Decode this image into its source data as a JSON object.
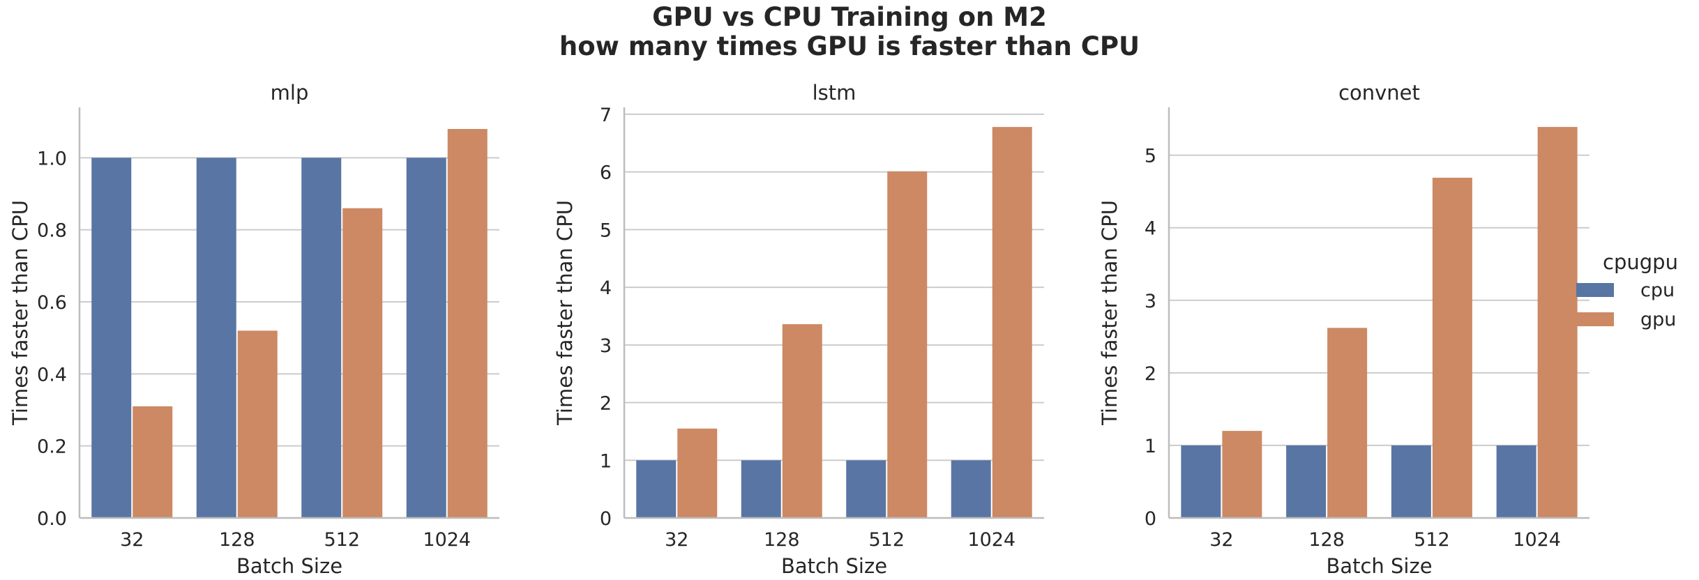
{
  "title_line1": "GPU vs CPU Training on M2",
  "title_line2": "how many times GPU is faster than CPU",
  "colors": {
    "cpu": "#5875a4",
    "gpu": "#cc8963",
    "grid": "#cccccc",
    "axis": "#bdbdbd"
  },
  "legend": {
    "title": "cpugpu",
    "items": [
      "cpu",
      "gpu"
    ]
  },
  "chart_data": [
    {
      "type": "bar",
      "title": "mlp",
      "xlabel": "Batch Size",
      "ylabel": "Times faster than CPU",
      "categories": [
        "32",
        "128",
        "512",
        "1024"
      ],
      "series": [
        {
          "name": "cpu",
          "values": [
            1.0,
            1.0,
            1.0,
            1.0
          ]
        },
        {
          "name": "gpu",
          "values": [
            0.31,
            0.52,
            0.86,
            1.08
          ]
        }
      ],
      "ylim": [
        0,
        1.14
      ],
      "yticks": [
        0.0,
        0.2,
        0.4,
        0.6,
        0.8,
        1.0
      ],
      "ytick_labels": [
        "0.0",
        "0.2",
        "0.4",
        "0.6",
        "0.8",
        "1.0"
      ]
    },
    {
      "type": "bar",
      "title": "lstm",
      "xlabel": "Batch Size",
      "ylabel": "Times faster than CPU",
      "categories": [
        "32",
        "128",
        "512",
        "1024"
      ],
      "series": [
        {
          "name": "cpu",
          "values": [
            1.0,
            1.0,
            1.0,
            1.0
          ]
        },
        {
          "name": "gpu",
          "values": [
            1.55,
            3.36,
            6.01,
            6.78
          ]
        }
      ],
      "ylim": [
        0,
        7.12
      ],
      "yticks": [
        0,
        1,
        2,
        3,
        4,
        5,
        6,
        7
      ],
      "ytick_labels": [
        "0",
        "1",
        "2",
        "3",
        "4",
        "5",
        "6",
        "7"
      ]
    },
    {
      "type": "bar",
      "title": "convnet",
      "xlabel": "Batch Size",
      "ylabel": "Times faster than CPU",
      "categories": [
        "32",
        "128",
        "512",
        "1024"
      ],
      "series": [
        {
          "name": "cpu",
          "values": [
            1.0,
            1.0,
            1.0,
            1.0
          ]
        },
        {
          "name": "gpu",
          "values": [
            1.2,
            2.62,
            4.69,
            5.39
          ]
        }
      ],
      "ylim": [
        0,
        5.66
      ],
      "yticks": [
        0,
        1,
        2,
        3,
        4,
        5
      ],
      "ytick_labels": [
        "0",
        "1",
        "2",
        "3",
        "4",
        "5"
      ]
    }
  ]
}
